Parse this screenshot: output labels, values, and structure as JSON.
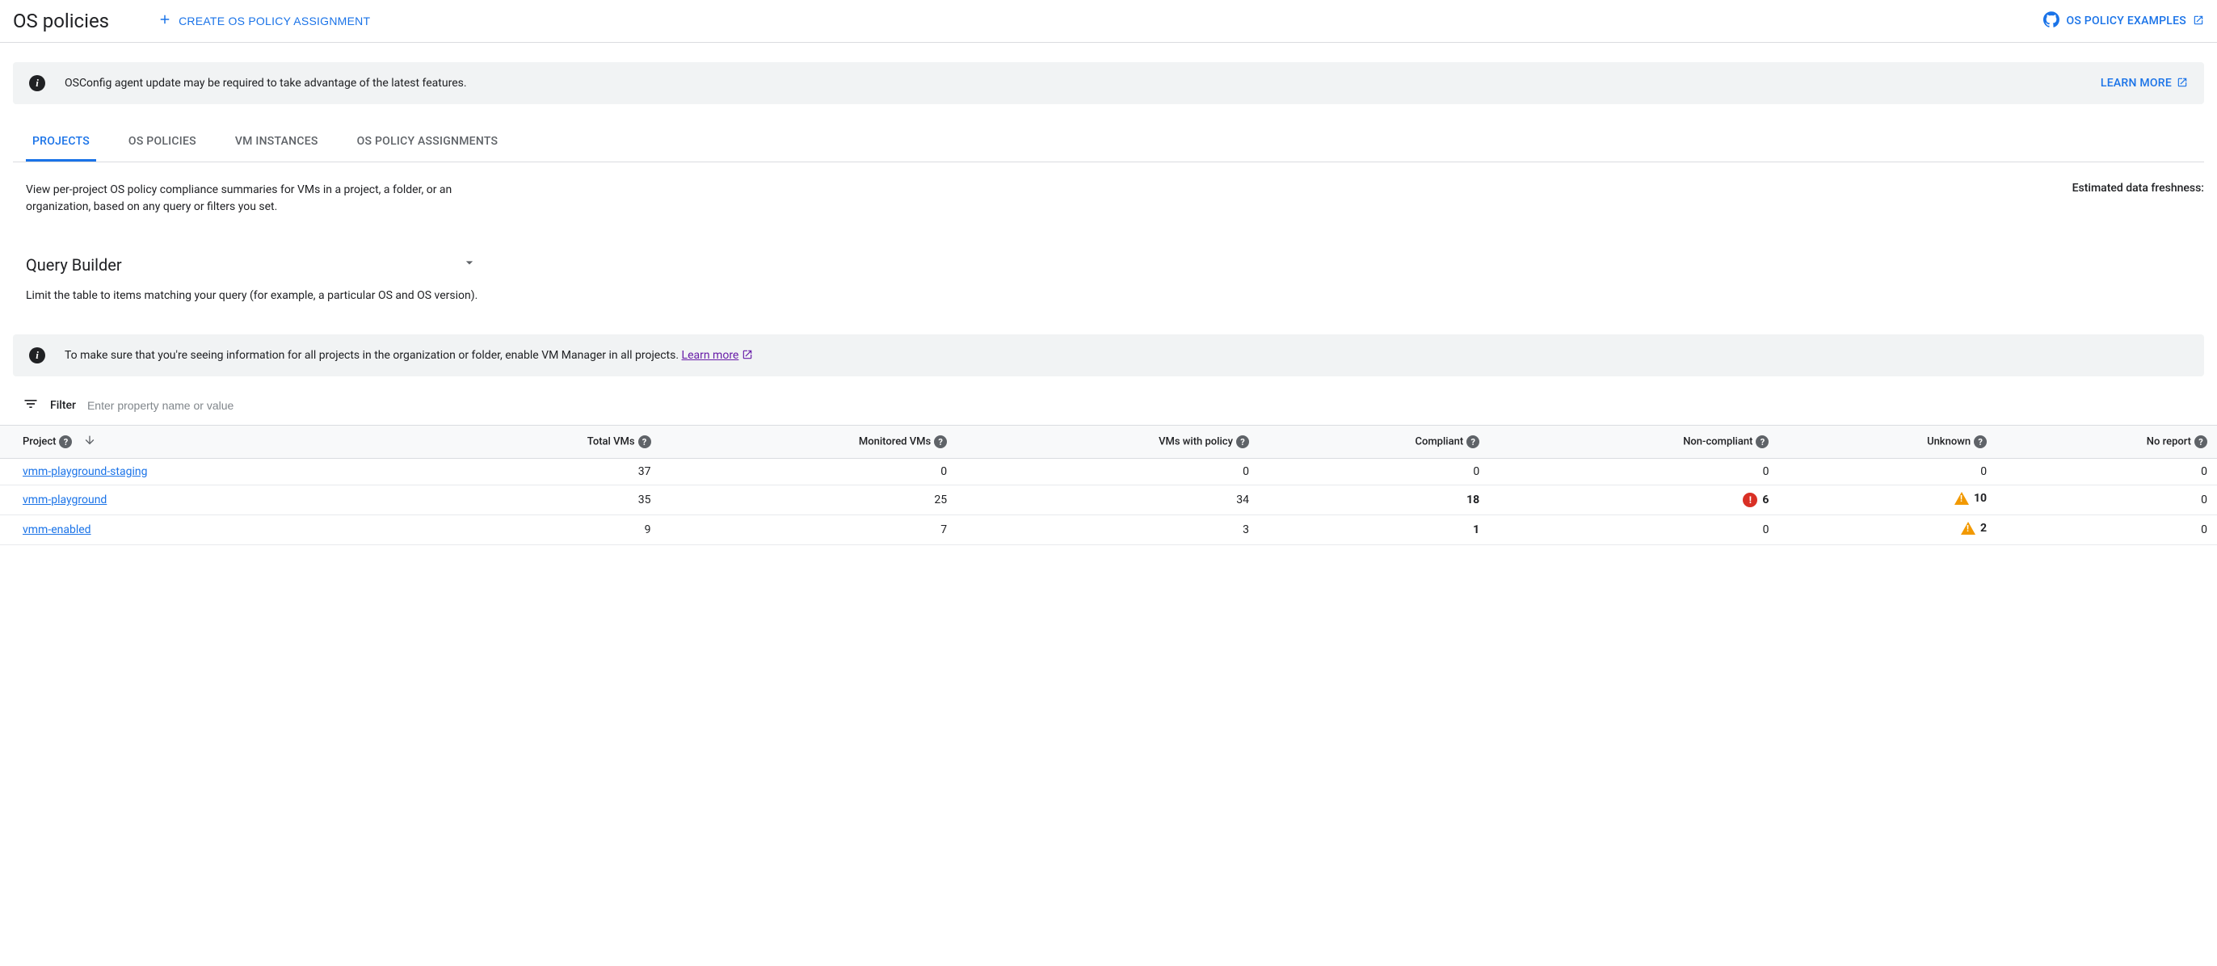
{
  "header": {
    "title": "OS policies",
    "create_label": "CREATE OS POLICY ASSIGNMENT",
    "examples_label": "OS POLICY EXAMPLES"
  },
  "banner1": {
    "text": "OSConfig agent update may be required to take advantage of the latest features.",
    "learn_more": "LEARN MORE"
  },
  "tabs": {
    "items": [
      {
        "label": "PROJECTS",
        "active": true
      },
      {
        "label": "OS POLICIES",
        "active": false
      },
      {
        "label": "VM INSTANCES",
        "active": false
      },
      {
        "label": "OS POLICY ASSIGNMENTS",
        "active": false
      }
    ]
  },
  "projects": {
    "description": "View per-project OS policy compliance summaries for VMs in a project, a folder, or an organization, based on any query or filters you set.",
    "freshness_label": "Estimated data freshness:",
    "query_builder": {
      "title": "Query Builder",
      "desc": "Limit the table to items matching your query (for example, a particular OS and OS version)."
    },
    "banner2": {
      "text": "To make sure that you're seeing information for all projects in the organization or folder, enable VM Manager in all projects. ",
      "link_text": "Learn more"
    },
    "filter": {
      "label": "Filter",
      "placeholder": "Enter property name or value"
    },
    "table": {
      "columns": [
        {
          "label": "Project",
          "help": true,
          "sort": true
        },
        {
          "label": "Total VMs",
          "help": true
        },
        {
          "label": "Monitored VMs",
          "help": true
        },
        {
          "label": "VMs with policy",
          "help": true
        },
        {
          "label": "Compliant",
          "help": true
        },
        {
          "label": "Non-compliant",
          "help": true
        },
        {
          "label": "Unknown",
          "help": true
        },
        {
          "label": "No report",
          "help": true
        }
      ],
      "rows": [
        {
          "project": "vmm-playground-staging",
          "total_vms": "37",
          "monitored_vms": "0",
          "vms_with_policy": "0",
          "compliant": {
            "value": "0",
            "bold": false
          },
          "non_compliant": {
            "value": "0",
            "icon": null
          },
          "unknown": {
            "value": "0",
            "icon": null
          },
          "no_report": "0"
        },
        {
          "project": "vmm-playground",
          "total_vms": "35",
          "monitored_vms": "25",
          "vms_with_policy": "34",
          "compliant": {
            "value": "18",
            "bold": true
          },
          "non_compliant": {
            "value": "6",
            "icon": "error"
          },
          "unknown": {
            "value": "10",
            "icon": "warning"
          },
          "no_report": "0"
        },
        {
          "project": "vmm-enabled",
          "total_vms": "9",
          "monitored_vms": "7",
          "vms_with_policy": "3",
          "compliant": {
            "value": "1",
            "bold": true
          },
          "non_compliant": {
            "value": "0",
            "icon": null
          },
          "unknown": {
            "value": "2",
            "icon": "warning"
          },
          "no_report": "0"
        }
      ]
    }
  },
  "colors": {
    "primary": "#1a73e8",
    "error": "#d93025",
    "warning": "#f29900",
    "link_visited": "#681da8",
    "banner_bg": "#f1f3f4",
    "border": "#dadce0"
  }
}
